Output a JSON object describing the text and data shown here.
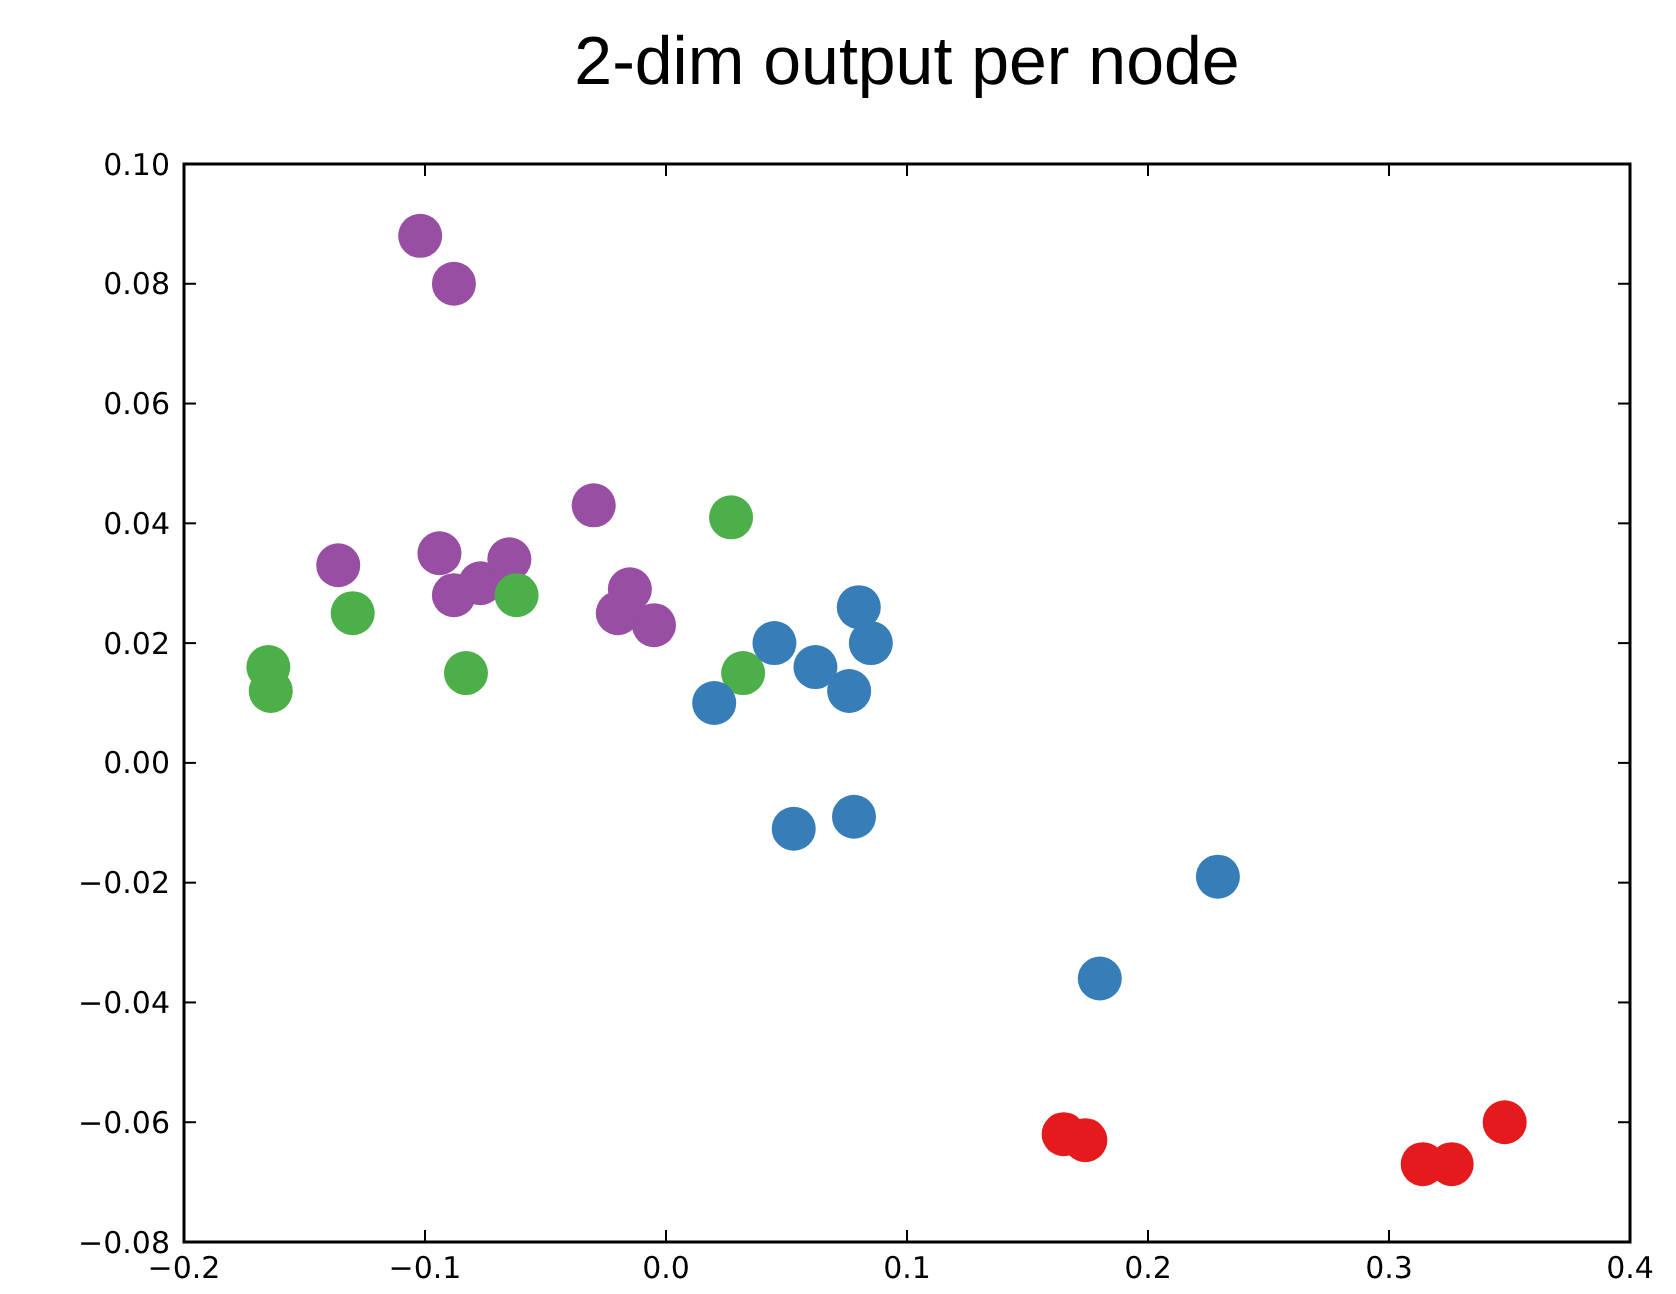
{
  "chart_data": {
    "type": "scatter",
    "title": "2-dim output per node",
    "marker": "circle",
    "grid": false,
    "xlim": [
      -0.2,
      0.4
    ],
    "xticks": [
      {
        "value": -0.2,
        "label": "−0.2"
      },
      {
        "value": -0.1,
        "label": "−0.1"
      },
      {
        "value": 0,
        "label": "0.0"
      },
      0.1,
      0.2,
      0.3,
      0.4
    ],
    "ylim": [
      -0.08,
      0.1
    ],
    "yticks": [
      {
        "value": -0.08,
        "label": "−0.08"
      },
      {
        "value": -0.06,
        "label": "−0.06"
      },
      {
        "value": -0.04,
        "label": "−0.04"
      },
      {
        "value": -0.02,
        "label": "−0.02"
      },
      {
        "value": 0,
        "label": "0.00"
      },
      {
        "value": 0.02,
        "label": "0.02"
      },
      {
        "value": 0.04,
        "label": "0.04"
      },
      {
        "value": 0.06,
        "label": "0.06"
      },
      {
        "value": 0.08,
        "label": "0.08"
      },
      {
        "value": 0.1,
        "label": "0.10"
      }
    ],
    "series": [
      {
        "color": "#984ea3",
        "x": [
          -0.102,
          -0.088,
          -0.136,
          -0.094,
          -0.088,
          -0.077,
          -0.065,
          -0.03,
          -0.015,
          -0.02,
          -0.005
        ],
        "values": [
          0.088,
          0.08,
          0.033,
          0.035,
          0.028,
          0.03,
          0.034,
          0.043,
          0.029,
          0.025,
          0.023
        ]
      },
      {
        "color": "#4daf4a",
        "x": [
          -0.165,
          -0.164,
          -0.13,
          -0.083,
          -0.062,
          0.027,
          0.032
        ],
        "values": [
          0.016,
          0.012,
          0.025,
          0.015,
          0.028,
          0.041,
          0.015
        ]
      },
      {
        "color": "#377eb8",
        "x": [
          0.02,
          0.045,
          0.062,
          0.076,
          0.08,
          0.085,
          0.053,
          0.078,
          0.18,
          0.229
        ],
        "values": [
          0.01,
          0.02,
          0.016,
          0.012,
          0.026,
          0.02,
          -0.011,
          -0.009,
          -0.036,
          -0.019
        ]
      },
      {
        "color": "#e41a1c",
        "x": [
          0.165,
          0.174,
          0.314,
          0.326,
          0.348
        ],
        "values": [
          -0.062,
          -0.063,
          -0.067,
          -0.067,
          -0.06
        ]
      }
    ]
  }
}
